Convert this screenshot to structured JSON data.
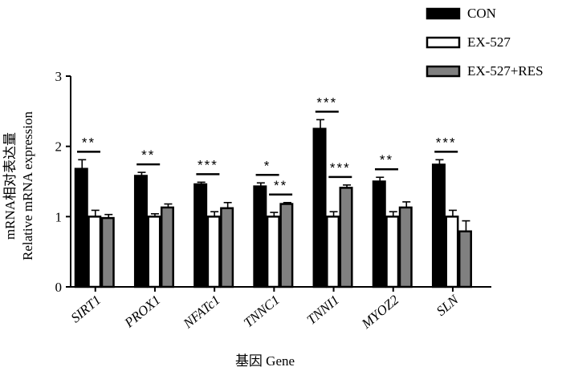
{
  "chart_data": {
    "type": "bar",
    "ylabel_cn": "mRNA相对表达量",
    "ylabel": "Relative mRNA expression",
    "xlabel": "基因 Gene",
    "ylim": [
      0,
      3
    ],
    "yticks": [
      "0",
      "1",
      "2",
      "3"
    ],
    "categories": [
      "SIRT1",
      "PROX1",
      "NFATc1",
      "TNNC1",
      "TNNI1",
      "MYOZ2",
      "SLN"
    ],
    "series": [
      {
        "name": "CON",
        "color": "#000000",
        "values": [
          1.68,
          1.58,
          1.46,
          1.43,
          2.25,
          1.5,
          1.74
        ],
        "errors": [
          0.13,
          0.05,
          0.03,
          0.05,
          0.13,
          0.06,
          0.07
        ]
      },
      {
        "name": "EX-527",
        "color": "#ffffff",
        "values": [
          1.0,
          1.0,
          1.0,
          1.0,
          1.0,
          1.0,
          1.0
        ],
        "errors": [
          0.09,
          0.04,
          0.07,
          0.06,
          0.07,
          0.07,
          0.09
        ]
      },
      {
        "name": "EX-527+RES",
        "color": "#808080",
        "values": [
          0.98,
          1.13,
          1.12,
          1.18,
          1.41,
          1.13,
          0.79
        ],
        "errors": [
          0.05,
          0.05,
          0.08,
          0.02,
          0.04,
          0.08,
          0.15
        ]
      }
    ],
    "significance": [
      {
        "category": 0,
        "from": 0,
        "to": 1,
        "label": "**"
      },
      {
        "category": 1,
        "from": 0,
        "to": 1,
        "label": "**"
      },
      {
        "category": 2,
        "from": 0,
        "to": 1,
        "label": "***"
      },
      {
        "category": 3,
        "from": 0,
        "to": 1,
        "label": "*"
      },
      {
        "category": 3,
        "from": 1,
        "to": 2,
        "label": "**"
      },
      {
        "category": 4,
        "from": 0,
        "to": 1,
        "label": "***"
      },
      {
        "category": 4,
        "from": 1,
        "to": 2,
        "label": "***"
      },
      {
        "category": 5,
        "from": 0,
        "to": 1,
        "label": "**"
      },
      {
        "category": 6,
        "from": 0,
        "to": 1,
        "label": "***"
      }
    ],
    "legend_position": "top-right"
  }
}
